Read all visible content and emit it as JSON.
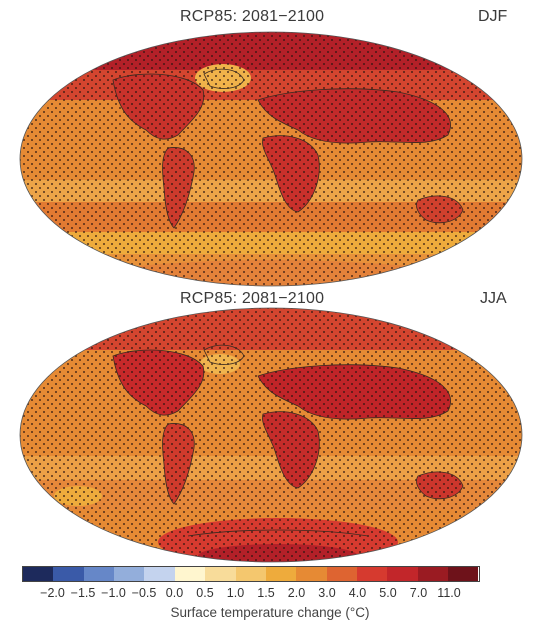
{
  "panels": [
    {
      "title": "RCP85: 2081−2100",
      "season": "DJF"
    },
    {
      "title": "RCP85: 2081−2100",
      "season": "JJA"
    }
  ],
  "colorbar": {
    "label": "Surface temperature change (°C)",
    "ticks": [
      "−2.0",
      "−1.5",
      "−1.0",
      "−0.5",
      "0.0",
      "0.5",
      "1.0",
      "1.5",
      "2.0",
      "3.0",
      "4.0",
      "5.0",
      "7.0",
      "11.0"
    ],
    "colors": [
      "#1d2a5c",
      "#3a5aa8",
      "#6687c8",
      "#93aedb",
      "#c4d3ee",
      "#fff6cf",
      "#f8dc9a",
      "#f4c76e",
      "#eeab3c",
      "#e68a34",
      "#de6431",
      "#d63a2f",
      "#c2262a",
      "#9a1b22",
      "#6e121a"
    ]
  },
  "colors": {
    "ocean_base": "#e88a3c",
    "land_base": "#d4412e",
    "warm_band": "#eeab3c",
    "arctic": "#a21d24",
    "stipple": "#2a1410",
    "coast": "#3a2a20"
  }
}
